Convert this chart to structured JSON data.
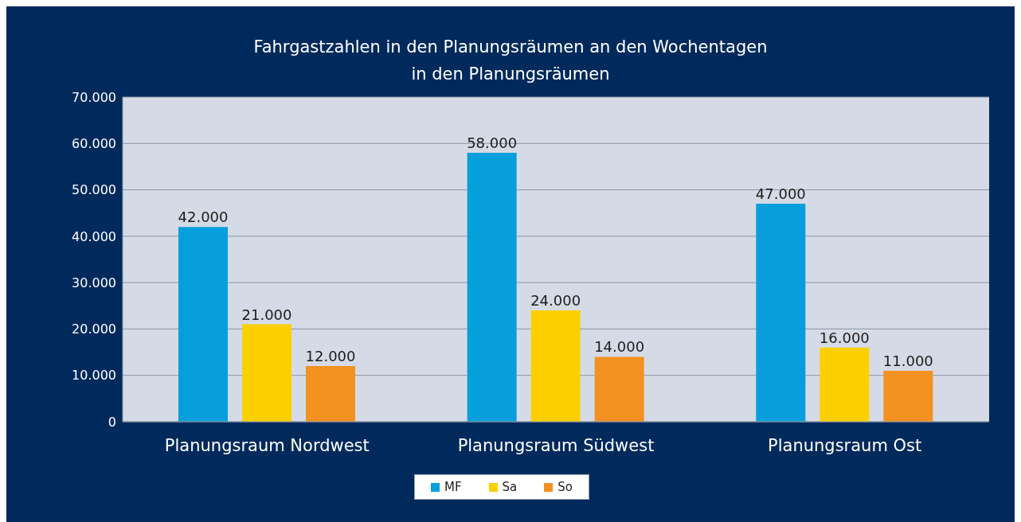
{
  "chart_data": {
    "type": "bar",
    "title": "Fahrgastzahlen in den Planungsräumen an den Wochentagen\nin den Planungsräumen",
    "categories": [
      "Planungsraum Nordwest",
      "Planungsraum Südwest",
      "Planungsraum Ost"
    ],
    "series": [
      {
        "name": "MF",
        "color": "#069fdc",
        "values": [
          42000,
          58000,
          47000
        ],
        "value_labels": [
          "42.000",
          "58.000",
          "47.000"
        ]
      },
      {
        "name": "Sa",
        "color": "#fcd000",
        "values": [
          21000,
          24000,
          16000
        ],
        "value_labels": [
          "21.000",
          "24.000",
          "16.000"
        ]
      },
      {
        "name": "So",
        "color": "#f39121",
        "values": [
          12000,
          14000,
          11000
        ],
        "value_labels": [
          "12.000",
          "14.000",
          "11.000"
        ]
      }
    ],
    "ylim": [
      0,
      70000
    ],
    "yticks": [
      {
        "value": 0,
        "label": "0"
      },
      {
        "value": 10000,
        "label": "10.000"
      },
      {
        "value": 20000,
        "label": "20.000"
      },
      {
        "value": 30000,
        "label": "30.000"
      },
      {
        "value": 40000,
        "label": "40.000"
      },
      {
        "value": 50000,
        "label": "50.000"
      },
      {
        "value": 60000,
        "label": "60.000"
      },
      {
        "value": 70000,
        "label": "70.000"
      }
    ],
    "grid": "y",
    "legend": "bottom"
  }
}
